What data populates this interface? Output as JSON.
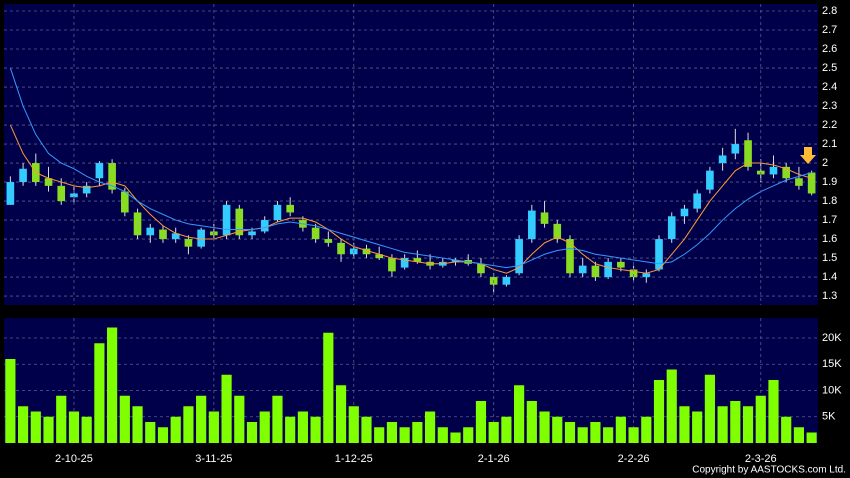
{
  "chart_data": [
    {
      "type": "candlestick",
      "grid": true,
      "up_color": "#33ccff",
      "down_color": "#88dd22",
      "open": [
        1.78,
        1.9,
        2.0,
        1.92,
        1.88,
        1.82,
        1.84,
        1.92,
        2.0,
        1.85,
        1.74,
        1.62,
        1.65,
        1.6,
        1.6,
        1.56,
        1.64,
        1.62,
        1.76,
        1.62,
        1.64,
        1.7,
        1.78,
        1.7,
        1.66,
        1.6,
        1.58,
        1.52,
        1.55,
        1.52,
        1.5,
        1.45,
        1.5,
        1.48,
        1.46,
        1.48,
        1.49,
        1.47,
        1.4,
        1.36,
        1.42,
        1.6,
        1.74,
        1.68,
        1.6,
        1.42,
        1.46,
        1.4,
        1.48,
        1.44,
        1.4,
        1.44,
        1.6,
        1.72,
        1.76,
        1.86,
        2.0,
        2.05,
        2.12,
        1.96,
        1.94,
        1.98,
        1.92,
        1.95
      ],
      "high": [
        1.93,
        2.0,
        2.05,
        1.98,
        1.92,
        1.88,
        1.9,
        2.01,
        2.02,
        1.87,
        1.76,
        1.68,
        1.67,
        1.66,
        1.62,
        1.66,
        1.68,
        1.8,
        1.78,
        1.66,
        1.72,
        1.8,
        1.82,
        1.72,
        1.68,
        1.64,
        1.6,
        1.58,
        1.57,
        1.56,
        1.52,
        1.52,
        1.54,
        1.52,
        1.5,
        1.5,
        1.52,
        1.5,
        1.42,
        1.41,
        1.62,
        1.78,
        1.8,
        1.7,
        1.62,
        1.5,
        1.48,
        1.5,
        1.5,
        1.46,
        1.44,
        1.62,
        1.74,
        1.78,
        1.86,
        1.98,
        2.08,
        2.18,
        2.16,
        2.02,
        2.04,
        2.0,
        1.98,
        1.96
      ],
      "low": [
        1.78,
        1.88,
        1.88,
        1.85,
        1.78,
        1.79,
        1.82,
        1.88,
        1.84,
        1.72,
        1.6,
        1.58,
        1.58,
        1.58,
        1.52,
        1.55,
        1.6,
        1.6,
        1.6,
        1.6,
        1.63,
        1.69,
        1.72,
        1.64,
        1.58,
        1.56,
        1.48,
        1.5,
        1.5,
        1.49,
        1.4,
        1.44,
        1.47,
        1.44,
        1.45,
        1.46,
        1.46,
        1.4,
        1.32,
        1.35,
        1.41,
        1.58,
        1.66,
        1.58,
        1.4,
        1.4,
        1.38,
        1.39,
        1.43,
        1.38,
        1.37,
        1.43,
        1.58,
        1.68,
        1.74,
        1.84,
        1.96,
        2.02,
        1.96,
        1.9,
        1.92,
        1.9,
        1.86,
        1.83
      ],
      "close": [
        1.9,
        1.97,
        1.9,
        1.88,
        1.8,
        1.84,
        1.88,
        2.0,
        1.86,
        1.74,
        1.62,
        1.66,
        1.6,
        1.63,
        1.56,
        1.65,
        1.62,
        1.78,
        1.62,
        1.64,
        1.7,
        1.78,
        1.74,
        1.66,
        1.6,
        1.58,
        1.52,
        1.55,
        1.52,
        1.5,
        1.43,
        1.5,
        1.48,
        1.46,
        1.48,
        1.49,
        1.47,
        1.42,
        1.36,
        1.4,
        1.6,
        1.75,
        1.68,
        1.6,
        1.42,
        1.46,
        1.4,
        1.48,
        1.45,
        1.4,
        1.42,
        1.6,
        1.72,
        1.76,
        1.84,
        1.96,
        2.04,
        2.1,
        1.98,
        1.94,
        1.98,
        1.92,
        1.88,
        1.84
      ],
      "series": [
        {
          "color": "#ff9933",
          "values": [
            2.2,
            2.05,
            1.95,
            1.92,
            1.9,
            1.88,
            1.87,
            1.88,
            1.9,
            1.88,
            1.8,
            1.73,
            1.67,
            1.63,
            1.61,
            1.6,
            1.6,
            1.62,
            1.64,
            1.65,
            1.66,
            1.69,
            1.71,
            1.71,
            1.69,
            1.65,
            1.6,
            1.56,
            1.54,
            1.52,
            1.5,
            1.49,
            1.48,
            1.47,
            1.47,
            1.48,
            1.48,
            1.47,
            1.44,
            1.42,
            1.45,
            1.52,
            1.58,
            1.61,
            1.58,
            1.52,
            1.47,
            1.45,
            1.44,
            1.43,
            1.42,
            1.44,
            1.52,
            1.6,
            1.7,
            1.8,
            1.88,
            1.96,
            2.0,
            2.0,
            1.99,
            1.97,
            1.94,
            1.92
          ]
        },
        {
          "color": "#3399ff",
          "values": [
            2.5,
            2.3,
            2.15,
            2.05,
            2.0,
            1.97,
            1.93,
            1.9,
            1.88,
            1.85,
            1.8,
            1.76,
            1.73,
            1.7,
            1.68,
            1.67,
            1.66,
            1.65,
            1.65,
            1.65,
            1.66,
            1.68,
            1.69,
            1.68,
            1.67,
            1.65,
            1.63,
            1.61,
            1.59,
            1.57,
            1.55,
            1.53,
            1.52,
            1.51,
            1.5,
            1.49,
            1.48,
            1.47,
            1.46,
            1.45,
            1.46,
            1.49,
            1.52,
            1.54,
            1.55,
            1.54,
            1.52,
            1.51,
            1.5,
            1.49,
            1.48,
            1.47,
            1.48,
            1.52,
            1.57,
            1.63,
            1.7,
            1.76,
            1.81,
            1.85,
            1.88,
            1.91,
            1.93,
            1.95
          ]
        }
      ],
      "ylim": [
        1.253,
        2.837
      ],
      "yticks": [
        1.3,
        1.4,
        1.5,
        1.6,
        1.7,
        1.8,
        1.9,
        2,
        2.1,
        2.2,
        2.3,
        2.4,
        2.5,
        2.6,
        2.7,
        2.8
      ]
    },
    {
      "type": "bar",
      "grid": true,
      "color": "#80ff00",
      "categories": [
        null,
        null,
        null,
        null,
        null,
        "2-10-25",
        null,
        null,
        null,
        null,
        null,
        null,
        null,
        null,
        null,
        null,
        "3-11-25",
        null,
        null,
        null,
        null,
        null,
        null,
        null,
        null,
        null,
        null,
        "1-12-25",
        null,
        null,
        null,
        null,
        null,
        null,
        null,
        null,
        null,
        null,
        "2-1-26",
        null,
        null,
        null,
        null,
        null,
        null,
        null,
        null,
        null,
        null,
        "2-2-26",
        null,
        null,
        null,
        null,
        null,
        null,
        null,
        null,
        null,
        "2-3-26",
        null,
        null,
        null,
        null
      ],
      "values": [
        16000,
        7000,
        6000,
        5000,
        9000,
        6000,
        5000,
        19000,
        22000,
        9000,
        7000,
        4000,
        3000,
        5000,
        7000,
        9000,
        6000,
        13000,
        9000,
        4000,
        6000,
        9000,
        5000,
        6000,
        5000,
        21000,
        11000,
        7000,
        5000,
        3000,
        4000,
        3000,
        4000,
        6000,
        3000,
        2000,
        3000,
        8000,
        4000,
        5000,
        11000,
        8000,
        6000,
        5000,
        4000,
        3000,
        4000,
        3000,
        5000,
        3000,
        5000,
        12000,
        14000,
        7000,
        6000,
        13000,
        7000,
        8000,
        7000,
        9000,
        12000,
        5000,
        3000,
        2000
      ],
      "ylim": [
        0,
        23810
      ],
      "yticks": [
        {
          "value": 5000,
          "label": "5K"
        },
        {
          "value": 10000,
          "label": "10K"
        },
        {
          "value": 15000,
          "label": "15K"
        },
        {
          "value": 20000,
          "label": "20K"
        }
      ]
    }
  ],
  "footer": "Copyright by AASTOCKS.com Ltd."
}
